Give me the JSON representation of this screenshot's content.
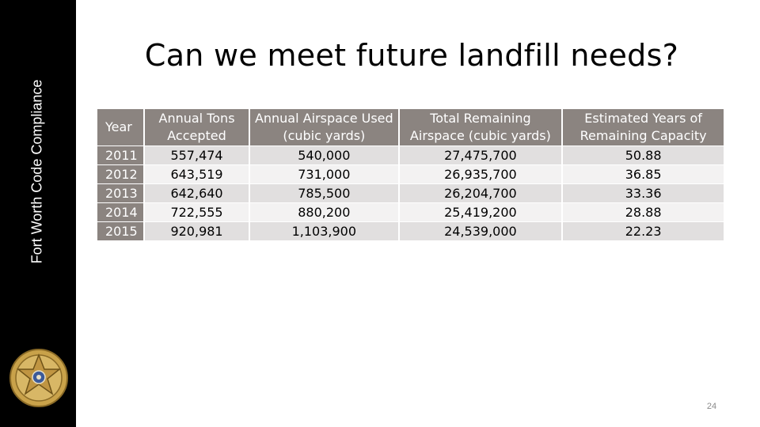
{
  "sidebar": {
    "vertical_label": "Fort Worth Code Compliance",
    "badge_icon": "fort-worth-code-compliance-star-badge"
  },
  "slide": {
    "title": "Can we meet future landfill needs?",
    "page_number": "24"
  },
  "table": {
    "headers": {
      "year": "Year",
      "tons": "Annual Tons Accepted",
      "airspace_used": "Annual Airspace Used (cubic yards)",
      "remaining": "Total Remaining Airspace (cubic yards)",
      "years_left": "Estimated Years of Remaining Capacity"
    },
    "rows": [
      {
        "year": "2011",
        "tons": "557,474",
        "airspace_used": "540,000",
        "remaining": "27,475,700",
        "years_left": "50.88"
      },
      {
        "year": "2012",
        "tons": "643,519",
        "airspace_used": "731,000",
        "remaining": "26,935,700",
        "years_left": "36.85"
      },
      {
        "year": "2013",
        "tons": "642,640",
        "airspace_used": "785,500",
        "remaining": "26,204,700",
        "years_left": "33.36"
      },
      {
        "year": "2014",
        "tons": "722,555",
        "airspace_used": "880,200",
        "remaining": "25,419,200",
        "years_left": "28.88"
      },
      {
        "year": "2015",
        "tons": "920,981",
        "airspace_used": "1,103,900",
        "remaining": "24,539,000",
        "years_left": "22.23"
      }
    ]
  },
  "colors": {
    "sidebar": "#000000",
    "header_fill": "#8b8480",
    "row_light": "#f3f2f2",
    "row_dark": "#e1dfdf",
    "badge_gold": "#c9a24a"
  }
}
